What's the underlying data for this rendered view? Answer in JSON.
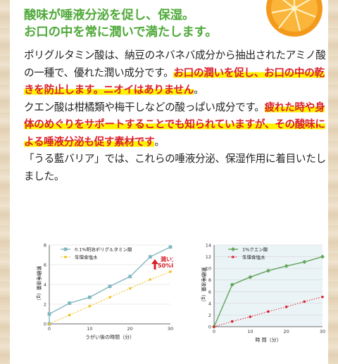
{
  "headline": {
    "line1": "酸味が唾液分泌を促し、保湿。",
    "line2": "お口の中を常に潤いで満たします。"
  },
  "paragraphs": {
    "p1_plain": "ポリグルタミン酸は、納豆のネバネバ成分から抽出されたアミノ酸の一種で、優れた潤い成分です。",
    "p1_highlight": "お口の潤いを促し、お口の中の乾きを防止します。ニオイはありません",
    "p1_end": "。",
    "p2_plain": "クエン酸は柑橘類や梅干しなどの酸っぱい成分です。",
    "p2_highlight": "疲れた時や身体のめぐりをサポートすることでも知られていますが、その酸味による唾液分泌も促す素材です",
    "p2_end": "。",
    "p3": "「うる藍バリア」では、これらの唾液分泌、保湿作用に着目いたしました。"
  },
  "colors": {
    "headline": "#4fa93a",
    "highlight_text": "#d8202a",
    "highlight_marker": "#fff200",
    "chart1_series": "#7fb7c0",
    "chart2_series": "#62a55a",
    "saline_series": "#f0c020",
    "saline_series_right": "#d8202a",
    "callout": "#d8202a"
  },
  "chart_data": [
    {
      "type": "line",
      "xlabel": "うがい後の時間（分）",
      "ylabel": "累積唾液量（g）",
      "xlim": [
        0,
        30
      ],
      "ylim": [
        0,
        8
      ],
      "xticks": [
        "0",
        "10",
        "20",
        "30"
      ],
      "yticks": [
        "0",
        "2",
        "4",
        "6",
        "8"
      ],
      "legend": "top",
      "series": [
        {
          "name": "0.1%明治ポリグルタミン酸",
          "x": [
            0,
            0,
            5,
            10,
            15,
            20,
            25,
            30
          ],
          "values": [
            0,
            1.0,
            2.1,
            2.7,
            3.8,
            4.8,
            6.8,
            7.8
          ]
        },
        {
          "name": "生理食塩水",
          "x": [
            0,
            5,
            10,
            15,
            20,
            25,
            30
          ],
          "values": [
            0,
            0.9,
            1.8,
            2.7,
            3.6,
            4.5,
            5.3
          ]
        }
      ],
      "annotation": {
        "line1": "潤い力",
        "line2": "50%UP"
      }
    },
    {
      "type": "line",
      "xlabel": "時 間（分）",
      "ylabel": "累積唾液量（g）",
      "xlim": [
        0,
        30
      ],
      "ylim": [
        0,
        14
      ],
      "xticks": [
        "0",
        "10",
        "20",
        "30"
      ],
      "yticks": [
        "0",
        "2",
        "4",
        "6",
        "8",
        "10",
        "12",
        "14"
      ],
      "legend": "top",
      "series": [
        {
          "name": "1%クエン酸",
          "x": [
            0,
            5,
            10,
            15,
            20,
            25,
            30
          ],
          "values": [
            0,
            7.2,
            8.5,
            9.6,
            10.4,
            11.1,
            12.0
          ]
        },
        {
          "name": "生理食塩水",
          "x": [
            0,
            5,
            10,
            15,
            20,
            25,
            30
          ],
          "values": [
            0,
            0.9,
            1.7,
            2.6,
            3.4,
            4.3,
            5.1
          ]
        }
      ]
    }
  ]
}
